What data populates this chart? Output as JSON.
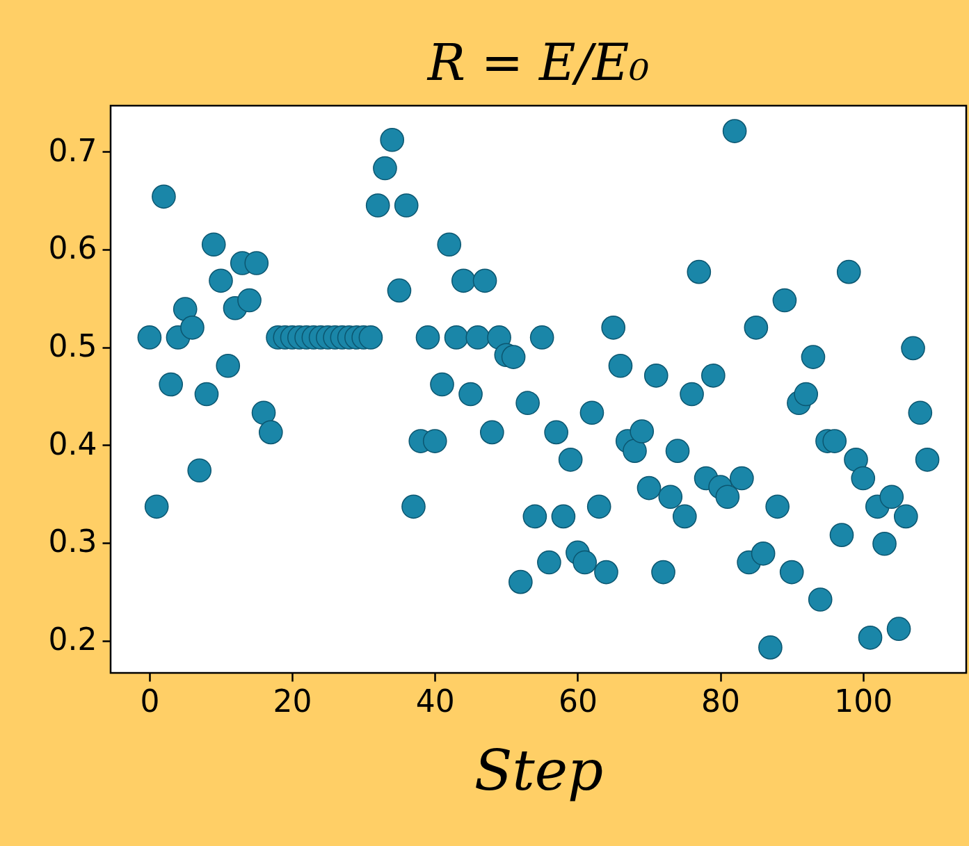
{
  "chart_data": {
    "type": "scatter",
    "title": "R = E/E₀",
    "xlabel": "Step",
    "marker": "circle",
    "color": "#1a86a8",
    "x": [
      0,
      1,
      2,
      3,
      4,
      5,
      6,
      7,
      8,
      9,
      10,
      11,
      12,
      13,
      14,
      15,
      16,
      17,
      18,
      19,
      20,
      21,
      22,
      23,
      24,
      25,
      26,
      27,
      28,
      29,
      30,
      31,
      32,
      33,
      34,
      35,
      36,
      37,
      38,
      39,
      40,
      41,
      42,
      43,
      44,
      45,
      46,
      47,
      48,
      49,
      50,
      51,
      52,
      53,
      54,
      55,
      56,
      57,
      58,
      59,
      60,
      61,
      62,
      63,
      64,
      65,
      66,
      67,
      68,
      69,
      70,
      71,
      72,
      73,
      74,
      75,
      76,
      77,
      78,
      79,
      80,
      81,
      82,
      83,
      84,
      85,
      86,
      87,
      88,
      89,
      90,
      91,
      92,
      93,
      94,
      95,
      96,
      97,
      98,
      99,
      100,
      101,
      102,
      103,
      104,
      105,
      106,
      107,
      108,
      109
    ],
    "values": [
      0.51,
      0.337,
      0.654,
      0.462,
      0.51,
      0.539,
      0.52,
      0.374,
      0.452,
      0.605,
      0.568,
      0.481,
      0.54,
      0.586,
      0.548,
      0.586,
      0.433,
      0.413,
      0.51,
      0.51,
      0.51,
      0.51,
      0.51,
      0.51,
      0.51,
      0.51,
      0.51,
      0.51,
      0.51,
      0.51,
      0.51,
      0.51,
      0.645,
      0.683,
      0.712,
      0.558,
      0.645,
      0.337,
      0.404,
      0.51,
      0.404,
      0.462,
      0.605,
      0.51,
      0.568,
      0.452,
      0.51,
      0.568,
      0.413,
      0.51,
      0.492,
      0.49,
      0.26,
      0.443,
      0.327,
      0.51,
      0.28,
      0.413,
      0.327,
      0.385,
      0.29,
      0.28,
      0.433,
      0.337,
      0.27,
      0.52,
      0.481,
      0.404,
      0.394,
      0.414,
      0.356,
      0.471,
      0.27,
      0.347,
      0.394,
      0.327,
      0.452,
      0.577,
      0.366,
      0.471,
      0.357,
      0.347,
      0.721,
      0.366,
      0.28,
      0.52,
      0.289,
      0.193,
      0.337,
      0.548,
      0.27,
      0.443,
      0.452,
      0.49,
      0.242,
      0.404,
      0.404,
      0.308,
      0.577,
      0.385,
      0.366,
      0.203,
      0.337,
      0.299,
      0.347,
      0.212,
      0.327,
      0.499,
      0.433,
      0.385
    ],
    "xlim": [
      -5.45,
      114.45
    ],
    "ylim": [
      0.167,
      0.747
    ],
    "xticks": [
      0,
      20,
      40,
      60,
      80,
      100
    ],
    "yticks": [
      0.2,
      0.3,
      0.4,
      0.5,
      0.6,
      0.7
    ]
  }
}
